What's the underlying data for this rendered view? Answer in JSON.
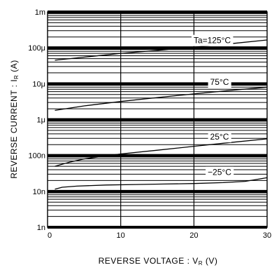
{
  "chart_data": {
    "type": "line",
    "xlabel": "REVERSE  VOLTAGE : V",
    "xlabel_sub": "R",
    "xlabel_unit": " (V)",
    "ylabel": "REVERSE  CURRENT : I",
    "ylabel_sub": "R",
    "ylabel_unit": " (A)",
    "xlim": [
      0,
      30
    ],
    "ylim": [
      1e-09,
      0.001
    ],
    "yscale": "log",
    "grid": true,
    "x_ticks": [
      {
        "value": 0,
        "label": "0"
      },
      {
        "value": 10,
        "label": "10"
      },
      {
        "value": 20,
        "label": "20"
      },
      {
        "value": 30,
        "label": "30"
      }
    ],
    "y_ticks": [
      {
        "value": 0.001,
        "label": "1m"
      },
      {
        "value": 0.0001,
        "label": "100μ"
      },
      {
        "value": 1e-05,
        "label": "10μ"
      },
      {
        "value": 1e-06,
        "label": "1μ"
      },
      {
        "value": 1e-07,
        "label": "100n"
      },
      {
        "value": 1e-08,
        "label": "10n"
      },
      {
        "value": 1e-09,
        "label": "1n"
      }
    ],
    "series": [
      {
        "name": "Ta=125°C",
        "x": [
          1,
          5,
          10,
          15,
          20,
          25,
          30
        ],
        "y": [
          4.5e-05,
          5.5e-05,
          7e-05,
          8.5e-05,
          0.000105,
          0.00013,
          0.000165
        ]
      },
      {
        "name": "75°C",
        "x": [
          1,
          5,
          10,
          15,
          20,
          25,
          30
        ],
        "y": [
          1.8e-06,
          2.4e-06,
          3.2e-06,
          4.1e-06,
          5.2e-06,
          6.5e-06,
          8e-06
        ]
      },
      {
        "name": "25°C",
        "x": [
          1,
          3,
          5,
          10,
          15,
          20,
          25,
          30
        ],
        "y": [
          5e-08,
          6.5e-08,
          8e-08,
          1.1e-07,
          1.4e-07,
          1.8e-07,
          2.3e-07,
          2.9e-07
        ]
      },
      {
        "name": "−25°C",
        "x": [
          1,
          2,
          4,
          8,
          12,
          16,
          20,
          24,
          27,
          30
        ],
        "y": [
          1.15e-08,
          1.3e-08,
          1.4e-08,
          1.5e-08,
          1.55e-08,
          1.6e-08,
          1.65e-08,
          1.75e-08,
          1.9e-08,
          2.4e-08
        ]
      }
    ]
  }
}
